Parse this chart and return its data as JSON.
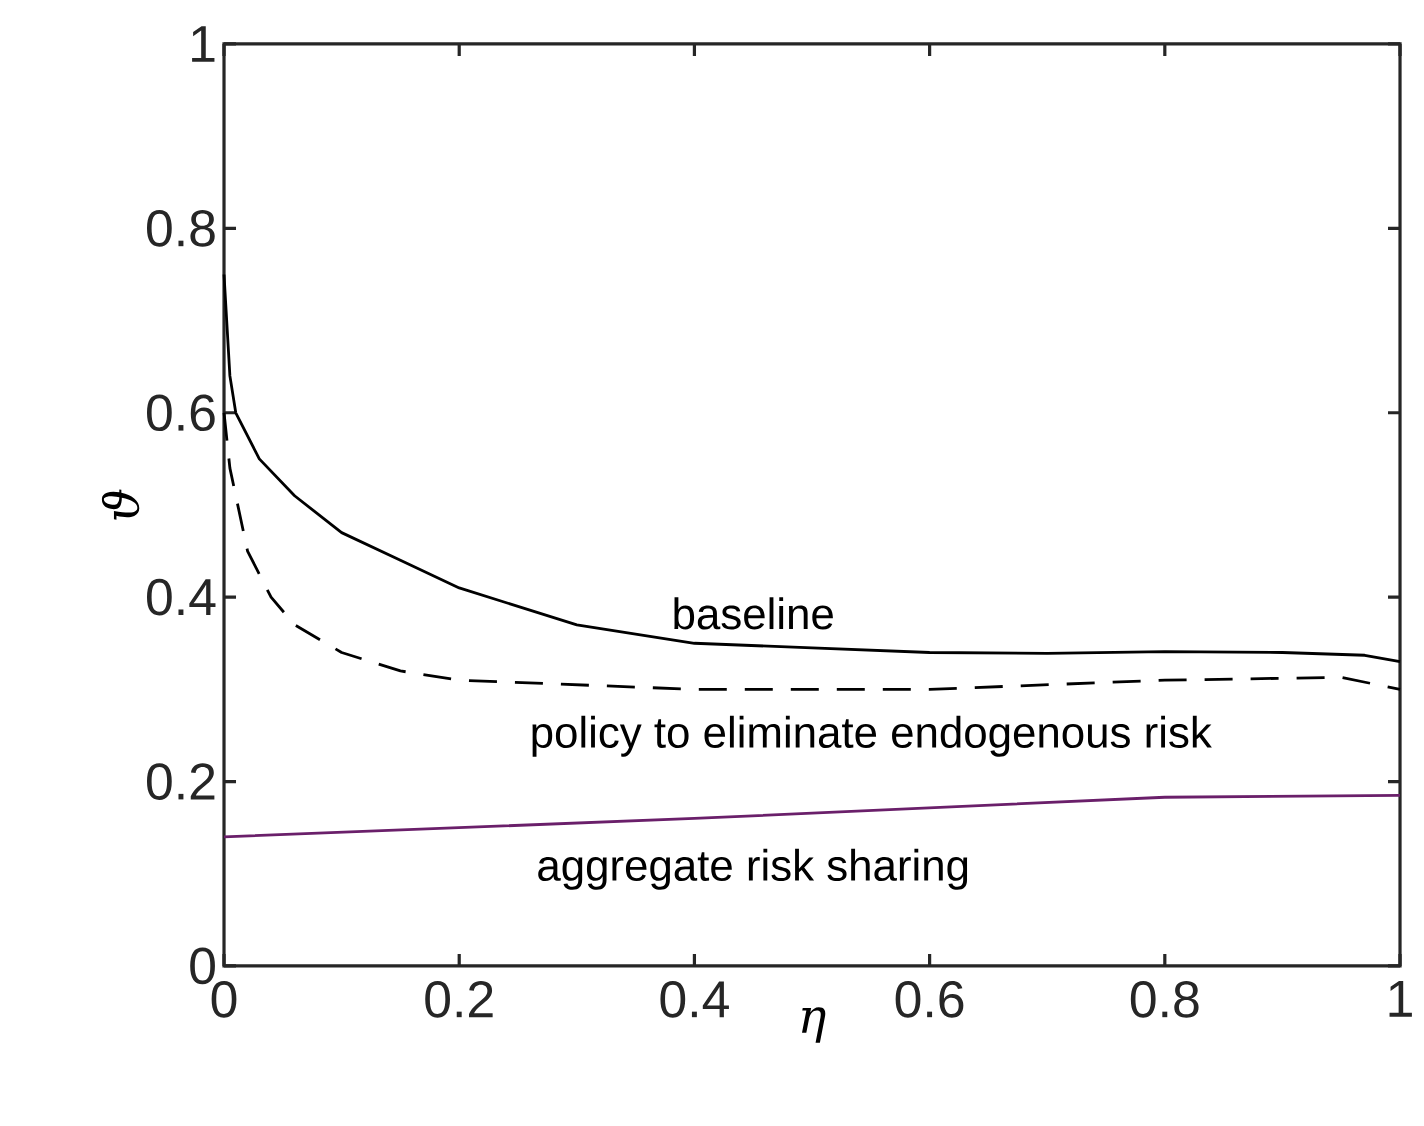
{
  "chart_data": {
    "type": "line",
    "xlabel": "η",
    "ylabel": "ϑ",
    "xlim": [
      0,
      1
    ],
    "ylim": [
      0,
      1
    ],
    "xticks": [
      0,
      0.2,
      0.4,
      0.6,
      0.8,
      1
    ],
    "yticks": [
      0,
      0.2,
      0.4,
      0.6,
      0.8,
      1
    ],
    "grid": false,
    "legend": false,
    "series": [
      {
        "name": "baseline",
        "color": "#000000",
        "line_style": "solid",
        "x": [
          0,
          0.005,
          0.01,
          0.03,
          0.06,
          0.1,
          0.15,
          0.2,
          0.3,
          0.4,
          0.5,
          0.6,
          0.7,
          0.8,
          0.9,
          0.97,
          1.0
        ],
        "values": [
          0.75,
          0.64,
          0.6,
          0.55,
          0.51,
          0.47,
          0.44,
          0.41,
          0.37,
          0.35,
          0.345,
          0.34,
          0.339,
          0.341,
          0.34,
          0.337,
          0.33
        ]
      },
      {
        "name": "policy to eliminate endogenous risk",
        "color": "#000000",
        "line_style": "dashed",
        "x": [
          0,
          0.005,
          0.01,
          0.02,
          0.04,
          0.06,
          0.1,
          0.15,
          0.2,
          0.3,
          0.4,
          0.6,
          0.8,
          0.95,
          1.0
        ],
        "values": [
          0.6,
          0.54,
          0.51,
          0.45,
          0.4,
          0.37,
          0.34,
          0.32,
          0.31,
          0.305,
          0.3,
          0.3,
          0.31,
          0.313,
          0.3
        ]
      },
      {
        "name": "aggregate risk sharing",
        "color": "#6a1f6a",
        "line_style": "solid",
        "x": [
          0,
          0.4,
          0.8,
          1.0
        ],
        "values": [
          0.14,
          0.16,
          0.183,
          0.185
        ]
      }
    ]
  }
}
